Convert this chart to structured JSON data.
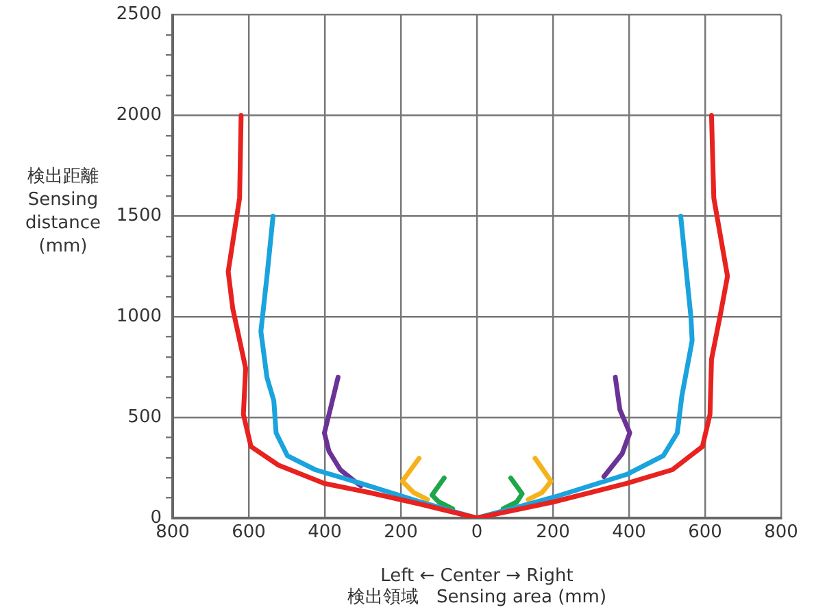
{
  "chart_data": {
    "type": "line",
    "xlabel": "Left ← Center → Right\n検出領域　Sensing area (mm)",
    "ylabel": "検出距離\nSensing\ndistance\n(mm)",
    "xlim": [
      -800,
      800
    ],
    "xticks": [
      {
        "value": -800,
        "label": "800"
      },
      {
        "value": -600,
        "label": "600"
      },
      {
        "value": -400,
        "label": "400"
      },
      {
        "value": -200,
        "label": "200"
      },
      0,
      200,
      400,
      600,
      800
    ],
    "ylim": [
      0,
      2500
    ],
    "yticks": [
      0,
      {
        "value": 100,
        "label": null
      },
      {
        "value": 200,
        "label": null
      },
      {
        "value": 300,
        "label": null
      },
      {
        "value": 400,
        "label": null
      },
      500,
      {
        "value": 600,
        "label": null
      },
      {
        "value": 700,
        "label": null
      },
      {
        "value": 800,
        "label": null
      },
      {
        "value": 900,
        "label": null
      },
      1000,
      {
        "value": 1100,
        "label": null
      },
      {
        "value": 1200,
        "label": null
      },
      {
        "value": 1300,
        "label": null
      },
      {
        "value": 1400,
        "label": null
      },
      1500,
      {
        "value": 1600,
        "label": null
      },
      {
        "value": 1700,
        "label": null
      },
      {
        "value": 1800,
        "label": null
      },
      {
        "value": 1900,
        "label": null
      },
      2000,
      {
        "value": 2100,
        "label": null
      },
      {
        "value": 2200,
        "label": null
      },
      {
        "value": 2300,
        "label": null
      },
      {
        "value": 2400,
        "label": null
      },
      2500
    ],
    "grid": true,
    "marker": "none",
    "line_style": "solid",
    "series": [
      {
        "color": "#e8221e",
        "x": [
          -620,
          -624,
          -654,
          -642,
          -608,
          -614,
          -594,
          -522,
          -401,
          -281,
          -148,
          0,
          201,
          394,
          514,
          593,
          613,
          617,
          641,
          659,
          623,
          617
        ],
        "values": [
          2000,
          1590,
          1224,
          1041,
          744,
          515,
          355,
          263,
          172,
          126,
          69,
          0,
          80,
          172,
          240,
          355,
          515,
          789,
          1018,
          1201,
          1590,
          2000
        ]
      },
      {
        "color": "#1aa3dd",
        "x": [
          -536,
          -552,
          -568,
          -552,
          -534,
          -528,
          -498,
          -425,
          -305,
          -148,
          0,
          201,
          394,
          490,
          527,
          539,
          566,
          563,
          536
        ],
        "values": [
          1500,
          1201,
          927,
          698,
          583,
          423,
          309,
          240,
          172,
          80,
          0,
          103,
          217,
          309,
          423,
          606,
          881,
          995,
          1500
        ]
      },
      {
        "color": "#6a3395",
        "x": [
          -365,
          -383,
          -401,
          -389,
          -359,
          -329,
          -305
        ],
        "values": [
          700,
          560,
          423,
          332,
          240,
          194,
          160
        ]
      },
      {
        "color": "#6a3395",
        "x": [
          364,
          376,
          402,
          382,
          334
        ],
        "values": [
          700,
          538,
          423,
          320,
          206
        ]
      },
      {
        "color": "#f5b31b",
        "x": [
          -152,
          -196,
          -166,
          -130
        ],
        "values": [
          297,
          183,
          126,
          92
        ]
      },
      {
        "color": "#f5b31b",
        "x": [
          153,
          195,
          171,
          135
        ],
        "values": [
          297,
          183,
          126,
          92
        ]
      },
      {
        "color": "#1ea64b",
        "x": [
          -86,
          -118,
          -100,
          -64
        ],
        "values": [
          199,
          114,
          80,
          46
        ]
      },
      {
        "color": "#1ea64b",
        "x": [
          89,
          119,
          105,
          69
        ],
        "values": [
          199,
          121,
          80,
          46
        ]
      }
    ]
  }
}
